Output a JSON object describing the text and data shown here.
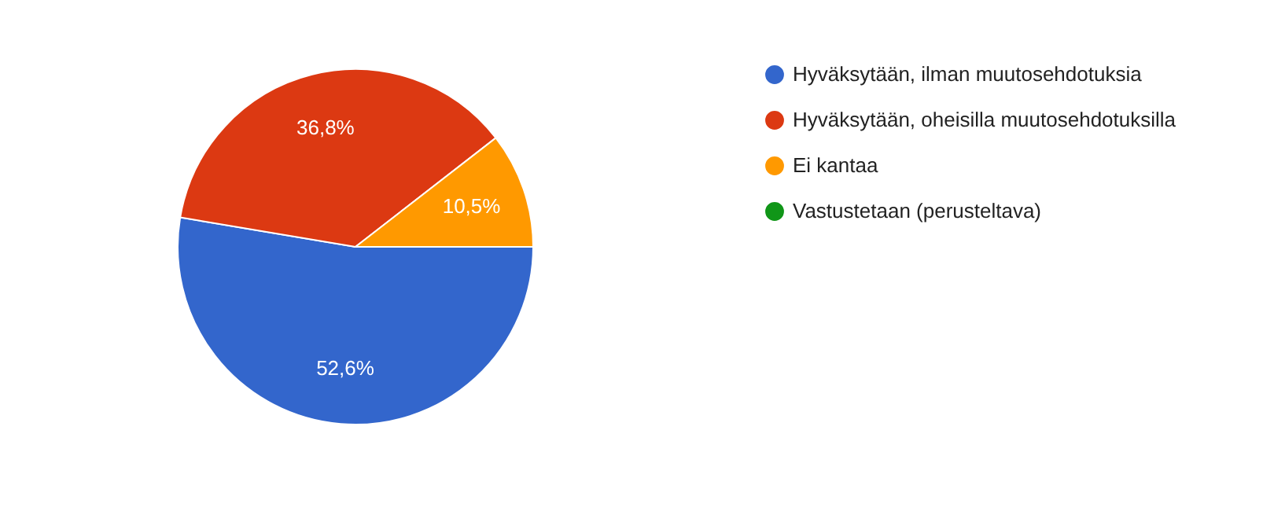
{
  "chart_data": {
    "type": "pie",
    "categories": [
      "Hyväksytään, ilman muutosehdotuksia",
      "Hyväksytään, oheisilla muutosehdotuksilla",
      "Ei kantaa",
      "Vastustetaan (perusteltava)"
    ],
    "values": [
      52.6,
      36.8,
      10.5,
      0
    ],
    "colors": [
      "#3366cc",
      "#dc3912",
      "#ff9900",
      "#109618"
    ],
    "value_labels": [
      "52,6%",
      "36,8%",
      "10,5%",
      null
    ],
    "legend": "right"
  }
}
